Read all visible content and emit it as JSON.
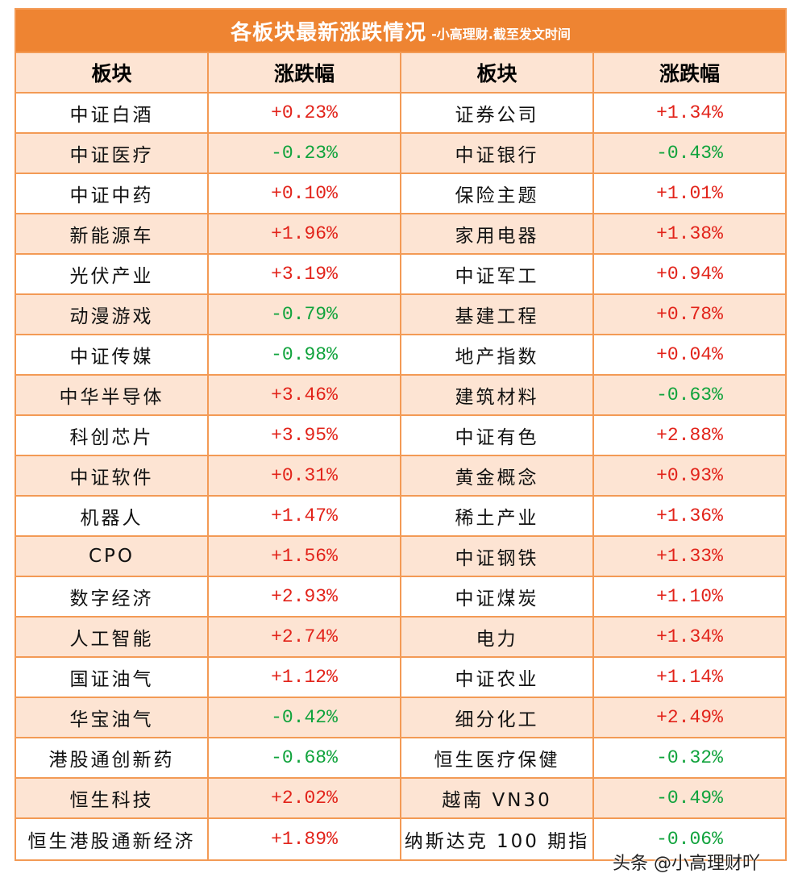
{
  "title": {
    "main": "各板块最新涨跌情况",
    "sub": "-小高理财.截至发文时间"
  },
  "headers": [
    "板块",
    "涨跌幅",
    "板块",
    "涨跌幅"
  ],
  "rows": [
    {
      "left_name": "中证白酒",
      "left_val": "+0.23%",
      "left_dir": "up",
      "right_name": "证券公司",
      "right_val": "+1.34%",
      "right_dir": "up"
    },
    {
      "left_name": "中证医疗",
      "left_val": "-0.23%",
      "left_dir": "down",
      "right_name": "中证银行",
      "right_val": "-0.43%",
      "right_dir": "down"
    },
    {
      "left_name": "中证中药",
      "left_val": "+0.10%",
      "left_dir": "up",
      "right_name": "保险主题",
      "right_val": "+1.01%",
      "right_dir": "up"
    },
    {
      "left_name": "新能源车",
      "left_val": "+1.96%",
      "left_dir": "up",
      "right_name": "家用电器",
      "right_val": "+1.38%",
      "right_dir": "up"
    },
    {
      "left_name": "光伏产业",
      "left_val": "+3.19%",
      "left_dir": "up",
      "right_name": "中证军工",
      "right_val": "+0.94%",
      "right_dir": "up"
    },
    {
      "left_name": "动漫游戏",
      "left_val": "-0.79%",
      "left_dir": "down",
      "right_name": "基建工程",
      "right_val": "+0.78%",
      "right_dir": "up"
    },
    {
      "left_name": "中证传媒",
      "left_val": "-0.98%",
      "left_dir": "down",
      "right_name": "地产指数",
      "right_val": "+0.04%",
      "right_dir": "up"
    },
    {
      "left_name": "中华半导体",
      "left_val": "+3.46%",
      "left_dir": "up",
      "right_name": "建筑材料",
      "right_val": "-0.63%",
      "right_dir": "down"
    },
    {
      "left_name": "科创芯片",
      "left_val": "+3.95%",
      "left_dir": "up",
      "right_name": "中证有色",
      "right_val": "+2.88%",
      "right_dir": "up"
    },
    {
      "left_name": "中证软件",
      "left_val": "+0.31%",
      "left_dir": "up",
      "right_name": "黄金概念",
      "right_val": "+0.93%",
      "right_dir": "up"
    },
    {
      "left_name": "机器人",
      "left_val": "+1.47%",
      "left_dir": "up",
      "right_name": "稀土产业",
      "right_val": "+1.36%",
      "right_dir": "up"
    },
    {
      "left_name": "CPO",
      "left_val": "+1.56%",
      "left_dir": "up",
      "right_name": "中证钢铁",
      "right_val": "+1.33%",
      "right_dir": "up"
    },
    {
      "left_name": "数字经济",
      "left_val": "+2.93%",
      "left_dir": "up",
      "right_name": "中证煤炭",
      "right_val": "+1.10%",
      "right_dir": "up"
    },
    {
      "left_name": "人工智能",
      "left_val": "+2.74%",
      "left_dir": "up",
      "right_name": "电力",
      "right_val": "+1.34%",
      "right_dir": "up"
    },
    {
      "left_name": "国证油气",
      "left_val": "+1.12%",
      "left_dir": "up",
      "right_name": "中证农业",
      "right_val": "+1.14%",
      "right_dir": "up"
    },
    {
      "left_name": "华宝油气",
      "left_val": "-0.42%",
      "left_dir": "down",
      "right_name": "细分化工",
      "right_val": "+2.49%",
      "right_dir": "up"
    },
    {
      "left_name": "港股通创新药",
      "left_val": "-0.68%",
      "left_dir": "down",
      "right_name": "恒生医疗保健",
      "right_val": "-0.32%",
      "right_dir": "down"
    },
    {
      "left_name": "恒生科技",
      "left_val": "+2.02%",
      "left_dir": "up",
      "right_name": "越南 VN30",
      "right_val": "-0.49%",
      "right_dir": "down"
    },
    {
      "left_name": "恒生港股通新经济",
      "left_val": "+1.89%",
      "left_dir": "up",
      "right_name": "纳斯达克 100 期指",
      "right_val": "-0.06%",
      "right_dir": "down"
    }
  ],
  "watermark": "头条 @小高理财吖",
  "colors": {
    "up": "#e2231a",
    "down": "#10a33c",
    "header_bg": "#ee8432",
    "stripe": "#fde4d3",
    "border": "#f39a55"
  }
}
